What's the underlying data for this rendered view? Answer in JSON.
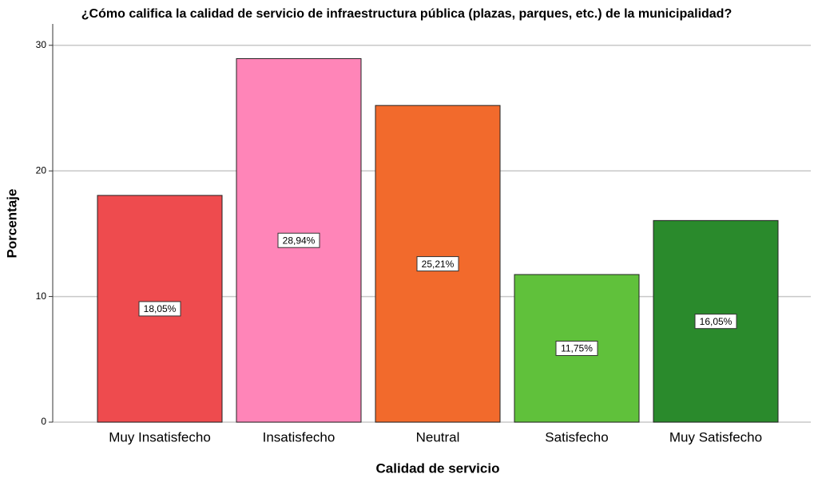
{
  "chart_data": {
    "type": "bar",
    "title": "¿Cómo califica la calidad de servicio de infraestructura pública (plazas, parques, etc.) de la municipalidad?",
    "x_label": "Calidad de servicio",
    "y_label": "Porcentaje",
    "categories": [
      "Muy Insatisfecho",
      "Insatisfecho",
      "Neutral",
      "Satisfecho",
      "Muy Satisfecho"
    ],
    "values": [
      18.05,
      28.94,
      25.21,
      11.75,
      16.05
    ],
    "value_labels": [
      "18,05%",
      "28,94%",
      "25,21%",
      "11,75%",
      "16,05%"
    ],
    "colors": [
      "#ee4b4e",
      "#ff85b8",
      "#f26a2c",
      "#60c13b",
      "#2a8a2c"
    ],
    "ylim": [
      0,
      31.7
    ],
    "yticks": [
      0,
      10,
      20,
      30
    ],
    "grid": true
  }
}
